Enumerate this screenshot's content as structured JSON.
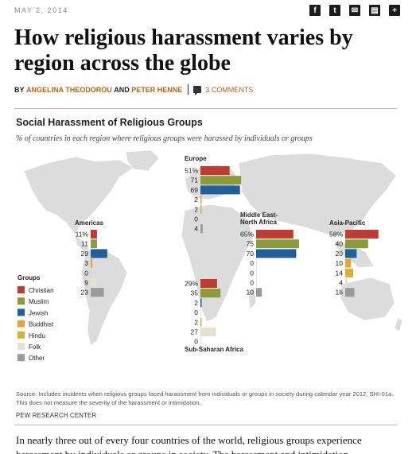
{
  "article": {
    "date": "MAY 2, 2014",
    "title": "How religious harassment varies by region across the globe",
    "byline_prefix": "BY",
    "author1": "ANGELINA THEODOROU",
    "byline_and": "AND",
    "author2": "PETER HENNE",
    "comments": "3 COMMENTS",
    "body": "In nearly three out of every four countries of the world, religious groups experience harassment by individuals or groups in society. The harassment and intimidation"
  },
  "share": [
    {
      "name": "facebook-icon",
      "glyph": "f"
    },
    {
      "name": "twitter-icon",
      "glyph": "t"
    },
    {
      "name": "email-icon",
      "glyph": "✉"
    },
    {
      "name": "print-icon",
      "glyph": "▤"
    },
    {
      "name": "more-share-icon",
      "glyph": "+"
    }
  ],
  "chart_data": {
    "type": "bar",
    "title": "Social Harassment of Religious Groups",
    "subtitle": "% of countries in each region where religious groups were harassed by individuals or groups",
    "legend_title": "Groups",
    "legend_placement": "left",
    "categories": [
      "Christian",
      "Muslim",
      "Jewish",
      "Buddhist",
      "Hindu",
      "Folk",
      "Other"
    ],
    "colors": [
      "#c23b33",
      "#8d9a3a",
      "#1f5f9c",
      "#e8a33a",
      "#d2b432",
      "#e6e2d2",
      "#9a9a9a"
    ],
    "series": [
      {
        "name": "Europe",
        "values": [
          51,
          71,
          69,
          2,
          2,
          0,
          4
        ],
        "labels": [
          "51%",
          "71",
          "69",
          "2",
          "2",
          "0",
          "4"
        ]
      },
      {
        "name": "Americas",
        "values": [
          11,
          11,
          29,
          3,
          0,
          9,
          23
        ],
        "labels": [
          "11%",
          "11",
          "29",
          "3",
          "0",
          "9",
          "23"
        ]
      },
      {
        "name": "Middle East-North Africa",
        "label_lines": [
          "Middle East-",
          "North Africa"
        ],
        "values": [
          65,
          75,
          70,
          0,
          0,
          0,
          10
        ],
        "labels": [
          "65%",
          "75",
          "70",
          "0",
          "0",
          "0",
          "10"
        ]
      },
      {
        "name": "Asia-Pacific",
        "values": [
          58,
          40,
          20,
          10,
          14,
          4,
          16
        ],
        "labels": [
          "58%",
          "40",
          "20",
          "10",
          "14",
          "4",
          "16"
        ]
      },
      {
        "name": "Sub-Saharan Africa",
        "values": [
          29,
          35,
          2,
          0,
          2,
          27,
          0
        ],
        "labels": [
          "29%",
          "35",
          "2",
          "0",
          "2",
          "27",
          "0"
        ]
      }
    ],
    "source": "Source: Includes incidents when religious groups faced harassment from individuals or groups in society during calendar year 2012, SHI-01a. This does not measure the severity of the harassment or intimidation.",
    "credit": "PEW RESEARCH CENTER"
  }
}
